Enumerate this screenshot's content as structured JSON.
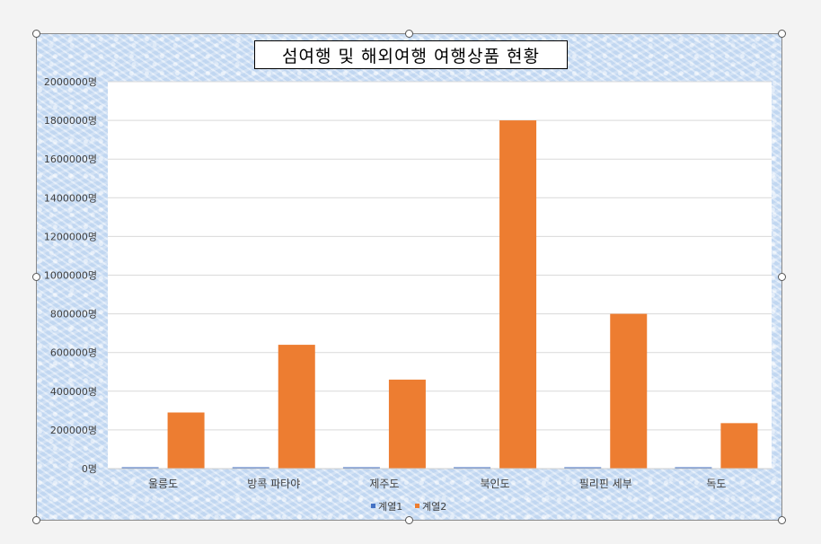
{
  "chart_data": {
    "type": "bar",
    "title": "섬여행 및 해외여행 여행상품 현황",
    "categories": [
      "울릉도",
      "방콕 파타야",
      "제주도",
      "북인도",
      "필리핀 세부",
      "독도"
    ],
    "series": [
      {
        "name": "계열1",
        "values": [
          1,
          2,
          3,
          4,
          5,
          6
        ],
        "color": "#4472c4"
      },
      {
        "name": "계열2",
        "values": [
          290000,
          640000,
          460000,
          1800000,
          800000,
          235000
        ],
        "color": "#ed7d31"
      }
    ],
    "ylim": [
      0,
      2000000
    ],
    "ytick_step": 200000,
    "ytick_suffix": "명",
    "ytick_labels": [
      "0명",
      "200000명",
      "400000명",
      "600000명",
      "800000명",
      "1000000명",
      "1200000명",
      "1400000명",
      "1600000명",
      "1800000명",
      "2000000명"
    ],
    "grid": true,
    "legend_position": "bottom"
  }
}
